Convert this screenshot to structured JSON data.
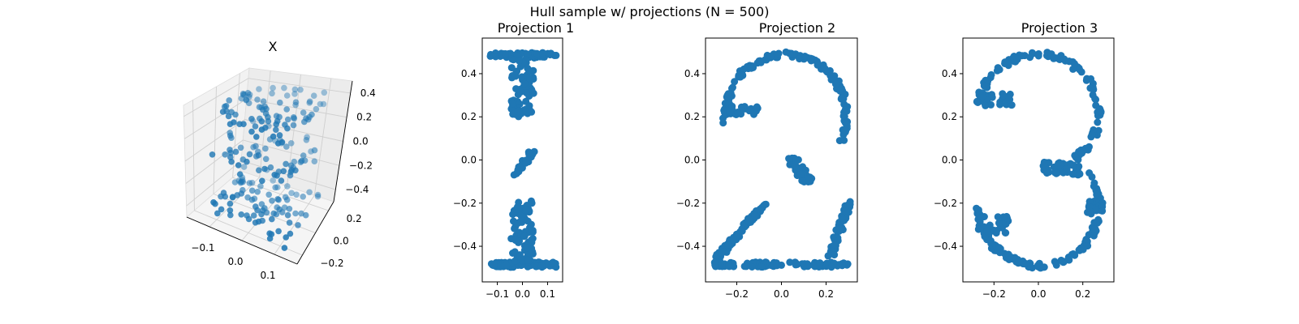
{
  "figure": {
    "title": "Hull sample w/ projections (N = 500)",
    "point_color": "#1f77b4"
  },
  "chart_data": [
    {
      "type": "scatter",
      "panel": "3d",
      "title": "X",
      "n_points": 500,
      "xlim": [
        -0.17,
        0.17
      ],
      "ylim": [
        -0.28,
        0.28
      ],
      "zlim": [
        -0.5,
        0.5
      ],
      "x_ticks": [
        "−0.1",
        "0.0",
        "0.1"
      ],
      "y_ticks": [
        "−0.2",
        "0.0",
        "0.2"
      ],
      "z_ticks": [
        "0.4",
        "0.2",
        "0.0",
        "−0.2",
        "−0.4"
      ],
      "grid": true,
      "color": "#1f77b4"
    },
    {
      "type": "scatter",
      "title": "Projection 1",
      "shape": "digit 1",
      "xlim": [
        -0.16,
        0.16
      ],
      "ylim": [
        -0.565,
        0.565
      ],
      "x_ticks": [
        "−0.1",
        "0.0",
        "0.1"
      ],
      "y_ticks": [
        "0.4",
        "0.2",
        "0.0",
        "−0.2",
        "−0.4"
      ],
      "color": "#1f77b4"
    },
    {
      "type": "scatter",
      "title": "Projection 2",
      "shape": "digit 2",
      "xlim": [
        -0.34,
        0.34
      ],
      "ylim": [
        -0.565,
        0.565
      ],
      "x_ticks": [
        "−0.2",
        "0.0",
        "0.2"
      ],
      "y_ticks": [
        "0.4",
        "0.2",
        "0.0",
        "−0.2",
        "−0.4"
      ],
      "color": "#1f77b4"
    },
    {
      "type": "scatter",
      "title": "Projection 3",
      "shape": "digit 3",
      "xlim": [
        -0.34,
        0.34
      ],
      "ylim": [
        -0.565,
        0.565
      ],
      "x_ticks": [
        "−0.2",
        "0.0",
        "0.2"
      ],
      "y_ticks": [
        "0.4",
        "0.2",
        "0.0",
        "−0.2",
        "−0.4"
      ],
      "color": "#1f77b4"
    }
  ]
}
